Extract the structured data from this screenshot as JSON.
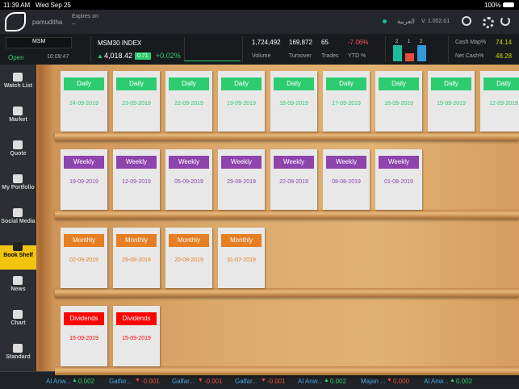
{
  "status_bar": {
    "time": "11:39 AM",
    "date": "Wed Sep 25",
    "battery": "100%"
  },
  "header": {
    "user": "pamuditha",
    "expires_label": "Expires on",
    "expires_value": "--",
    "language": "العربية",
    "version": "V. 1.002.01"
  },
  "market": {
    "exchange": "MSM",
    "status": "Open",
    "time": "10:09:47",
    "index_name": "MSM30 INDEX",
    "index_value": "4,018.42",
    "change": "0.71",
    "change_pct": "+0.02%",
    "stats": [
      {
        "value": "1,724,492",
        "label": "Volume"
      },
      {
        "value": "169,872",
        "label": "Turnover"
      },
      {
        "value": "65",
        "label": "Trades"
      },
      {
        "value": "-7.06%",
        "label": "YTD %",
        "color": "#ff5555"
      }
    ],
    "breadth": [
      {
        "value": 2,
        "color": "#1abc9c"
      },
      {
        "value": 1,
        "color": "#e74c3c"
      },
      {
        "value": 2,
        "color": "#3498db"
      }
    ],
    "cash_map_label": "Cash Map%",
    "cash_map_value": "74.14",
    "net_cash_label": "Net Cash%",
    "net_cash_value": "48.28"
  },
  "sidebar": {
    "active": 5,
    "items": [
      "Watch List",
      "Market",
      "Quote",
      "My Portfolio",
      "Social Media",
      "Book Shelf",
      "News",
      "Chart",
      "Standard"
    ]
  },
  "shelves": [
    {
      "label": "Daily",
      "color": "#2ecc71",
      "dates": [
        "24-09-2019",
        "23-09-2019",
        "22-09-2019",
        "19-09-2019",
        "18-09-2019",
        "17-09-2019",
        "16-09-2019",
        "15-09-2019",
        "12-09-2019"
      ]
    },
    {
      "label": "Weekly",
      "color": "#8e44ad",
      "dates": [
        "19-09-2019",
        "12-09-2019",
        "05-09-2019",
        "29-08-2019",
        "22-08-2019",
        "08-08-2019",
        "01-08-2019"
      ]
    },
    {
      "label": "Monthly",
      "color": "#e67e22",
      "dates": [
        "02-09-2019",
        "29-08-2019",
        "20-08-2019",
        "31-07-2019"
      ]
    },
    {
      "label": "Dividends",
      "color": "#ff0000",
      "dates": [
        "15-09-2019",
        "15-09-2019"
      ]
    }
  ],
  "ticker": [
    {
      "symbol": "Al Anw...",
      "change": "0.002",
      "direction": "up"
    },
    {
      "symbol": "Galfar...",
      "change": "-0.001",
      "direction": "down"
    },
    {
      "symbol": "Galfar...",
      "change": "-0.001",
      "direction": "down"
    },
    {
      "symbol": "Galfar...",
      "change": "-0.001",
      "direction": "down"
    },
    {
      "symbol": "Al Anw...",
      "change": "0.002",
      "direction": "up"
    },
    {
      "symbol": "Majan ...",
      "change": "0.000",
      "direction": "down"
    },
    {
      "symbol": "Al Anw...",
      "change": "0.002",
      "direction": "up"
    }
  ]
}
